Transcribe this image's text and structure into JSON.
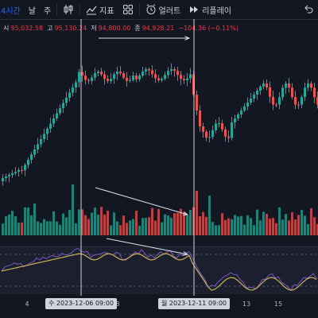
{
  "toolbar": {
    "interval": "4시간",
    "compare_label": "날",
    "compare_label2": "주",
    "indicators_label": "지표",
    "alert_label": "얼러트",
    "replay_label": "리플레이"
  },
  "legend": {
    "open_key": "시",
    "open": "95,032.58",
    "high_key": "고",
    "high": "95,130.24",
    "low_key": "저",
    "low": "94,800.00",
    "close_key": "종",
    "close": "94,928.21",
    "change": "−104.36 (−0.11%)"
  },
  "time_axis": {
    "ticks": [
      {
        "label": "4",
        "day": 4
      },
      {
        "label": "8",
        "day": 8
      },
      {
        "label": "13",
        "day": 13
      },
      {
        "label": "15",
        "day": 15
      }
    ],
    "crosshair_1": {
      "text": "수  2023-12-06   09:00"
    },
    "crosshair_2": {
      "text": "월  2023-12-11   09:00"
    }
  },
  "colors": {
    "up": "#26a69a",
    "down": "#ef5350",
    "background": "#131722",
    "indicator_line": "#7e57c2",
    "signal_line": "#c9b458",
    "crosshair": "#d1d4dc"
  },
  "annotations": [
    {
      "type": "arrow",
      "pane": "price",
      "desc": "arrow pointing right above price"
    },
    {
      "type": "arrow",
      "pane": "volume",
      "desc": "arrow pointing down-right toward volume"
    },
    {
      "type": "arrow",
      "pane": "oscillator",
      "desc": "arrow pointing down-right toward oscillator"
    }
  ]
}
